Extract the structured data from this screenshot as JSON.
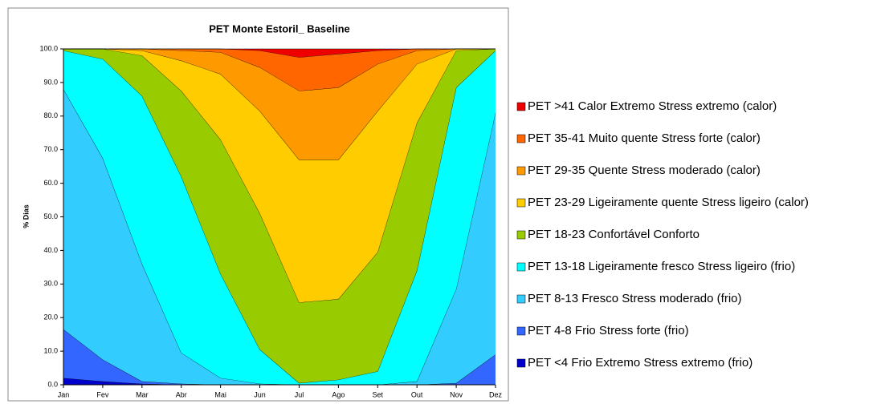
{
  "chart_data": {
    "type": "stacked_area",
    "title": "PET Monte Estoril_ Baseline",
    "y_label": "% Dias",
    "categories": [
      "Jan",
      "Fev",
      "Mar",
      "Abr",
      "Mai",
      "Jun",
      "Jul",
      "Ago",
      "Set",
      "Out",
      "Nov",
      "Dez"
    ],
    "ylim": [
      0,
      100
    ],
    "yticks": [
      {
        "value": 0,
        "label": "0.0"
      },
      {
        "value": 10,
        "label": "10.0"
      },
      {
        "value": 20,
        "label": "20.0"
      },
      {
        "value": 30,
        "label": "30.0"
      },
      {
        "value": 40,
        "label": "40.0"
      },
      {
        "value": 50,
        "label": "50.0"
      },
      {
        "value": 60,
        "label": "60.0"
      },
      {
        "value": 70,
        "label": "70.0"
      },
      {
        "value": 80,
        "label": "80.0"
      },
      {
        "value": 90,
        "label": "90.0"
      },
      {
        "value": 100,
        "label": "100.0"
      }
    ],
    "legend": "right",
    "series": [
      {
        "name": "PET <4 Frio Extremo Stress extremo (frio)",
        "color": "#0000cc",
        "values": [
          2,
          1,
          0.3,
          0,
          0,
          0,
          0,
          0,
          0,
          0,
          0,
          0
        ]
      },
      {
        "name": "PET 4-8 Frio Stress forte (frio)",
        "color": "#3366ff",
        "values": [
          14.5,
          6.5,
          0.7,
          0.3,
          0,
          0,
          0,
          0,
          0,
          0,
          0.5,
          9
        ]
      },
      {
        "name": "PET 8-13 Fresco Stress moderado (frio)",
        "color": "#33ccff",
        "values": [
          71.5,
          60,
          35,
          9.2,
          2,
          0.3,
          0,
          0,
          0,
          1,
          28,
          72
        ]
      },
      {
        "name": "PET 13-18 Ligeiramente fresco Stress ligeiro (frio)",
        "color": "#00ffff",
        "values": [
          11.5,
          29.5,
          50,
          52.5,
          31,
          10.2,
          0.5,
          1.5,
          4,
          33,
          60,
          18.5
        ]
      },
      {
        "name": "PET 18-23 Confortável Conforto",
        "color": "#99cc00",
        "values": [
          0.5,
          3,
          12,
          25.5,
          40,
          40.5,
          24,
          24,
          35.5,
          44,
          11,
          0.5
        ]
      },
      {
        "name": "PET 23-29 Ligeiramente quente Stress ligeiro (calor)",
        "color": "#ffcc00",
        "values": [
          0,
          0,
          1.5,
          9,
          19.5,
          30.5,
          42.5,
          41.5,
          42,
          17.5,
          0.5,
          0
        ]
      },
      {
        "name": "PET 29-35 Quente Stress moderado (calor)",
        "color": "#ff9900",
        "values": [
          0,
          0,
          0.5,
          3,
          6.5,
          13,
          20.5,
          21.5,
          14,
          4,
          0,
          0
        ]
      },
      {
        "name": "PET 35-41 Muito quente Stress forte (calor)",
        "color": "#ff6600",
        "values": [
          0,
          0,
          0,
          0.5,
          1,
          5,
          10,
          10,
          4,
          0.5,
          0,
          0
        ]
      },
      {
        "name": "PET >41 Calor Extremo Stress extremo (calor)",
        "color": "#ee0000",
        "values": [
          0,
          0,
          0,
          0,
          0,
          0.5,
          2.5,
          1.5,
          0.5,
          0,
          0,
          0
        ]
      }
    ]
  }
}
